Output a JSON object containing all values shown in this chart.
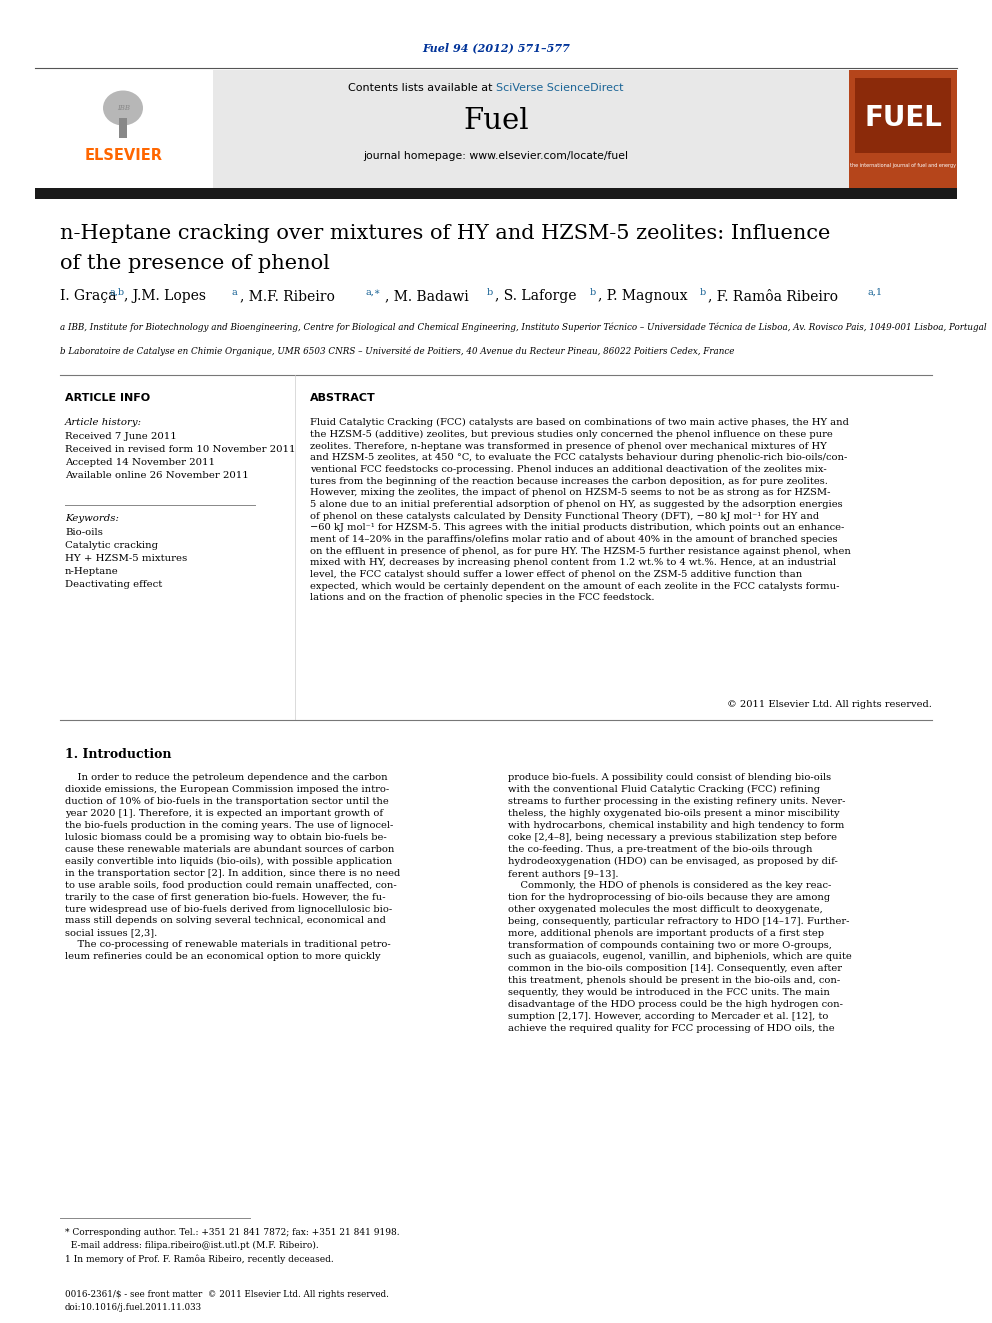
{
  "journal_ref": "Fuel 94 (2012) 571–577",
  "journal_ref_color": "#003399",
  "contents_line": "Contents lists available at ",
  "sciverse_text": "SciVerse ScienceDirect",
  "sciverse_color": "#1a6496",
  "journal_name": "Fuel",
  "journal_homepage": "journal homepage: www.elsevier.com/locate/fuel",
  "elsevier_color": "#ff6600",
  "header_bg": "#e8e8e8",
  "thick_bar_color": "#1a1a1a",
  "title_line1": "n-Heptane cracking over mixtures of HY and HZSM-5 zeolites: Influence",
  "title_line2": "of the presence of phenol",
  "affiliation_a": "a IBB, Institute for Biotechnology and Bioengineering, Centre for Biological and Chemical Engineering, Instituto Superior Técnico – Universidade Técnica de Lisboa, Av. Rovisco Pais, 1049-001 Lisboa, Portugal",
  "affiliation_b": "b Laboratoire de Catalyse en Chimie Organique, UMR 6503 CNRS – Université de Poitiers, 40 Avenue du Recteur Pineau, 86022 Poitiers Cedex, France",
  "article_info_header": "ARTICLE INFO",
  "abstract_header": "ABSTRACT",
  "article_history_label": "Article history:",
  "received1": "Received 7 June 2011",
  "received2": "Received in revised form 10 November 2011",
  "accepted": "Accepted 14 November 2011",
  "available": "Available online 26 November 2011",
  "keywords_label": "Keywords:",
  "keywords": [
    "Bio-oils",
    "Catalytic cracking",
    "HY + HZSM-5 mixtures",
    "n-Heptane",
    "Deactivating effect"
  ],
  "abstract_text": "Fluid Catalytic Cracking (FCC) catalysts are based on combinations of two main active phases, the HY and\nthe HZSM-5 (additive) zeolites, but previous studies only concerned the phenol influence on these pure\nzeolites. Therefore, n-heptane was transformed in presence of phenol over mechanical mixtures of HY\nand HZSM-5 zeolites, at 450 °C, to evaluate the FCC catalysts behaviour during phenolic-rich bio-oils/con-\nventional FCC feedstocks co-processing. Phenol induces an additional deactivation of the zeolites mix-\ntures from the beginning of the reaction because increases the carbon deposition, as for pure zeolites.\nHowever, mixing the zeolites, the impact of phenol on HZSM-5 seems to not be as strong as for HZSM-\n5 alone due to an initial preferential adsorption of phenol on HY, as suggested by the adsorption energies\nof phenol on these catalysts calculated by Density Functional Theory (DFT), −80 kJ mol⁻¹ for HY and\n−60 kJ mol⁻¹ for HZSM-5. This agrees with the initial products distribution, which points out an enhance-\nment of 14–20% in the paraffins/olefins molar ratio and of about 40% in the amount of branched species\non the effluent in presence of phenol, as for pure HY. The HZSM-5 further resistance against phenol, when\nmixed with HY, decreases by increasing phenol content from 1.2 wt.% to 4 wt.%. Hence, at an industrial\nlevel, the FCC catalyst should suffer a lower effect of phenol on the ZSM-5 additive function than\nexpected, which would be certainly dependent on the amount of each zeolite in the FCC catalysts formu-\nlations and on the fraction of phenolic species in the FCC feedstock.",
  "copyright": "© 2011 Elsevier Ltd. All rights reserved.",
  "intro_header": "1. Introduction",
  "col1_text": "    In order to reduce the petroleum dependence and the carbon\ndioxide emissions, the European Commission imposed the intro-\nduction of 10% of bio-fuels in the transportation sector until the\nyear 2020 [1]. Therefore, it is expected an important growth of\nthe bio-fuels production in the coming years. The use of lignocel-\nlulosic biomass could be a promising way to obtain bio-fuels be-\ncause these renewable materials are abundant sources of carbon\neasily convertible into liquids (bio-oils), with possible application\nin the transportation sector [2]. In addition, since there is no need\nto use arable soils, food production could remain unaffected, con-\ntrarily to the case of first generation bio-fuels. However, the fu-\nture widespread use of bio-fuels derived from lignocellulosic bio-\nmass still depends on solving several technical, economical and\nsocial issues [2,3].\n    The co-processing of renewable materials in traditional petro-\nleum refineries could be an economical option to more quickly",
  "col2_text": "produce bio-fuels. A possibility could consist of blending bio-oils\nwith the conventional Fluid Catalytic Cracking (FCC) refining\nstreams to further processing in the existing refinery units. Never-\ntheless, the highly oxygenated bio-oils present a minor miscibility\nwith hydrocarbons, chemical instability and high tendency to form\ncoke [2,4–8], being necessary a previous stabilization step before\nthe co-feeding. Thus, a pre-treatment of the bio-oils through\nhydrodeoxygenation (HDO) can be envisaged, as proposed by dif-\nferent authors [9–13].\n    Commonly, the HDO of phenols is considered as the key reac-\ntion for the hydroprocessing of bio-oils because they are among\nother oxygenated molecules the most difficult to deoxygenate,\nbeing, consequently, particular refractory to HDO [14–17]. Further-\nmore, additional phenols are important products of a first step\ntransformation of compounds containing two or more O-groups,\nsuch as guaiacols, eugenol, vanillin, and bipheniols, which are quite\ncommon in the bio-oils composition [14]. Consequently, even after\nthis treatment, phenols should be present in the bio-oils and, con-\nsequently, they would be introduced in the FCC units. The main\ndisadvantage of the HDO process could be the high hydrogen con-\nsumption [2,17]. However, according to Mercader et al. [12], to\nachieve the required quality for FCC processing of HDO oils, the",
  "footnote1": "* Corresponding author. Tel.: +351 21 841 7872; fax: +351 21 841 9198.",
  "footnote2": "  E-mail address: filipa.ribeiro@ist.utl.pt (M.F. Ribeiro).",
  "footnote3": "1 In memory of Prof. F. Ramôa Ribeiro, recently deceased.",
  "issn_line": "0016-2361/$ - see front matter  © 2011 Elsevier Ltd. All rights reserved.",
  "doi_line": "doi:10.1016/j.fuel.2011.11.033",
  "bg_color": "#ffffff",
  "text_color": "#000000",
  "link_color": "#1a6496"
}
